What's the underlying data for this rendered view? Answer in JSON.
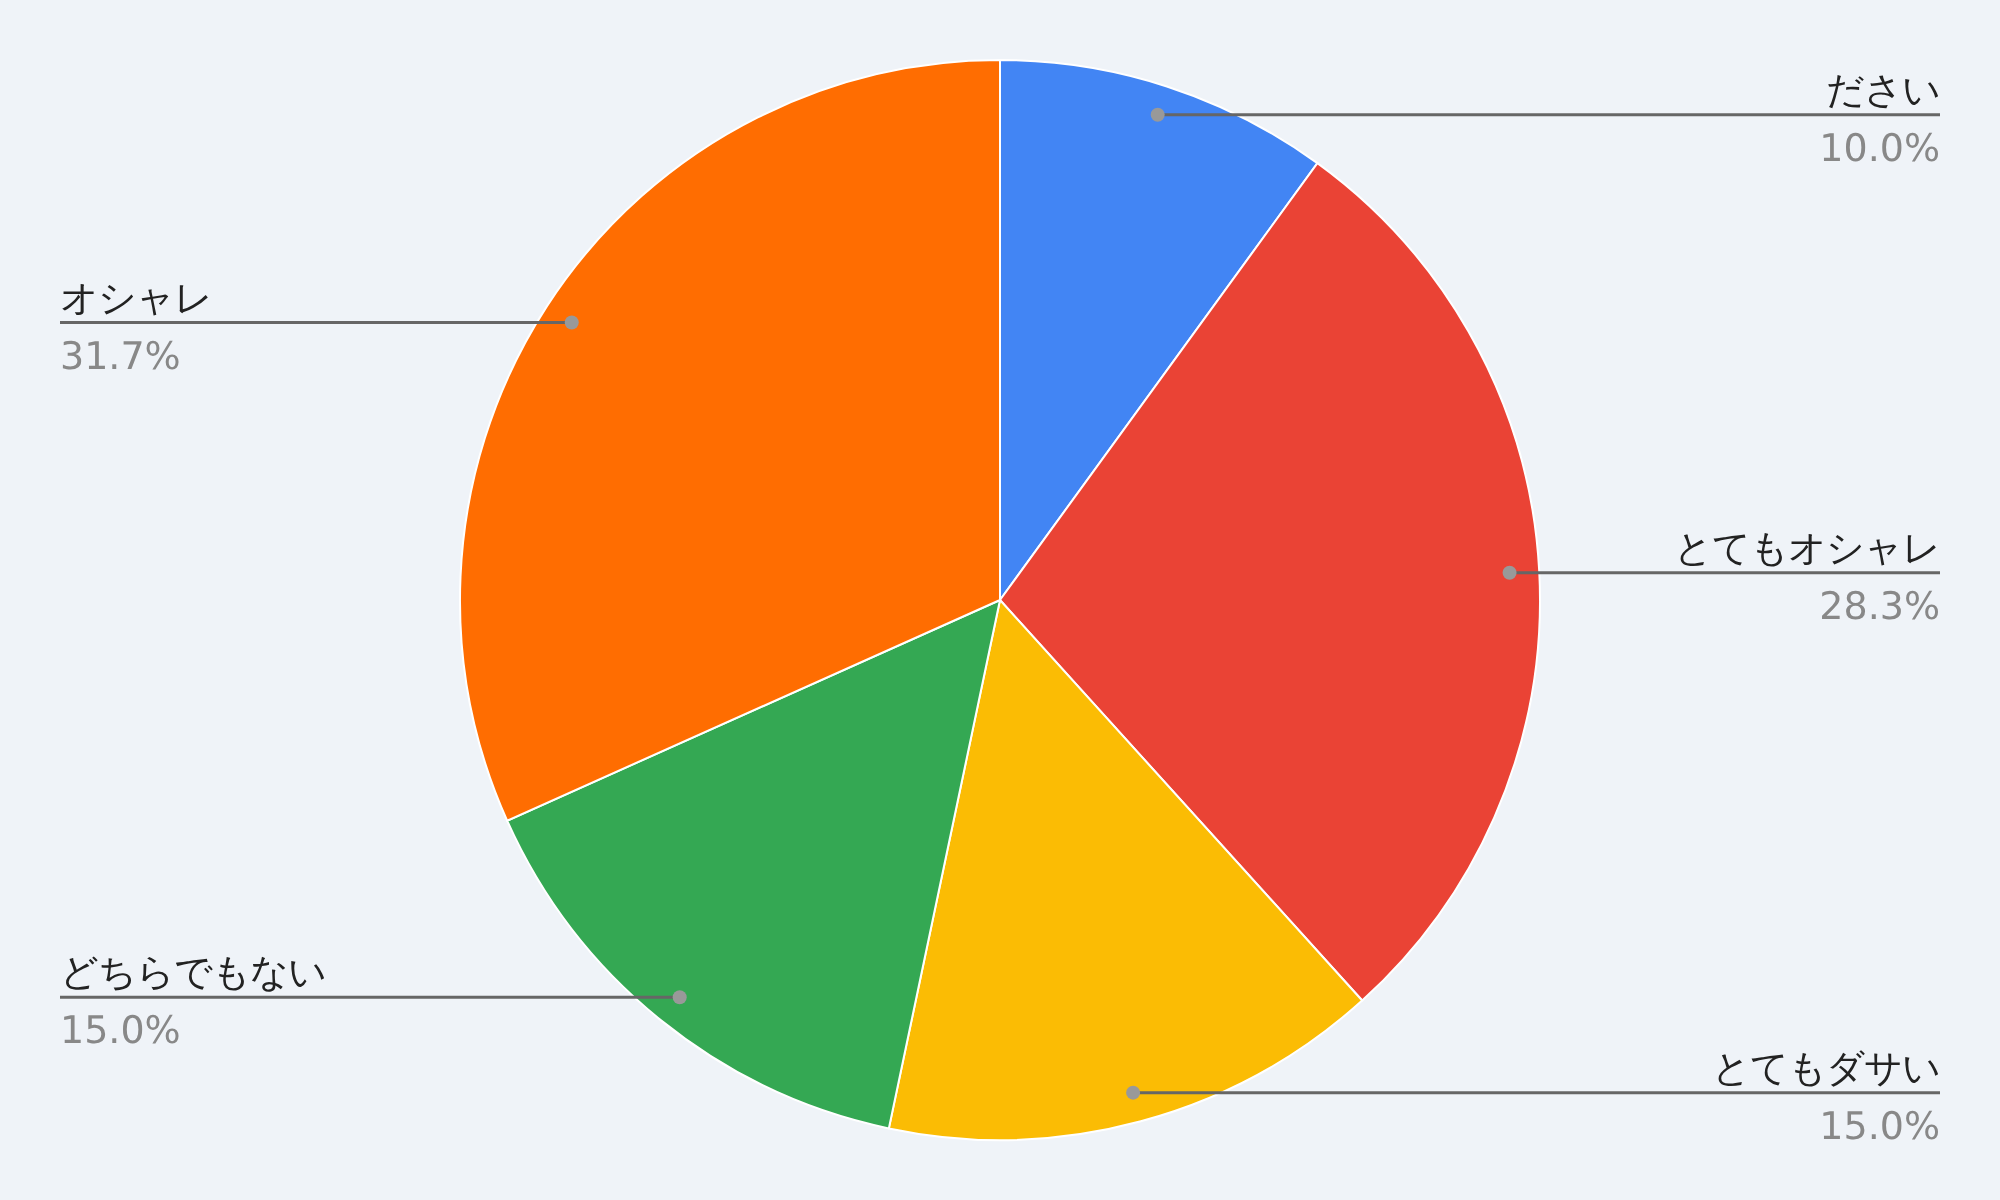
{
  "chart_data": {
    "type": "pie",
    "categories": [
      "ださい",
      "とてもオシャレ",
      "とてもダサい",
      "どちらでもない",
      "オシャレ"
    ],
    "values": [
      10.0,
      28.3,
      15.0,
      15.0,
      31.7
    ],
    "colors": [
      "#4285f4",
      "#ea4335",
      "#fbbc04",
      "#34a853",
      "#ff6d01"
    ],
    "value_labels": [
      "10.0%",
      "28.3%",
      "15.0%",
      "15.0%",
      "31.7%"
    ]
  }
}
